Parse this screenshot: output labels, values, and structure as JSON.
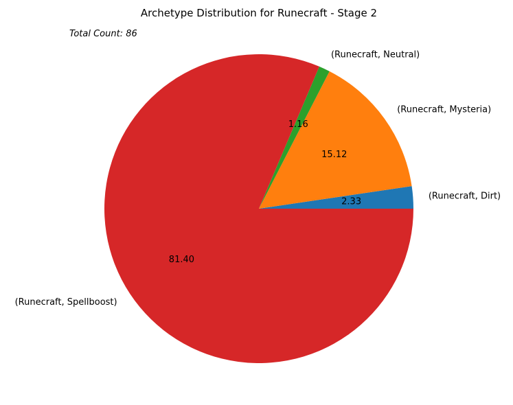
{
  "chart_data": {
    "type": "pie",
    "title": "Archetype Distribution for Runecraft - Stage 2",
    "annotation": "Total Count: 86",
    "categories": [
      "(Runecraft, Dirt)",
      "(Runecraft, Mysteria)",
      "(Runecraft, Neutral)",
      "(Runecraft, Spellboost)"
    ],
    "values": [
      2.33,
      15.12,
      1.16,
      81.4
    ],
    "value_labels": [
      "2.33",
      "15.12",
      "1.16",
      "81.40"
    ],
    "colors": [
      "#1f77b4",
      "#ff7f0e",
      "#2ca02c",
      "#d62728"
    ],
    "start_angle_deg": 0,
    "direction": "counterclockwise",
    "legend": "none"
  }
}
